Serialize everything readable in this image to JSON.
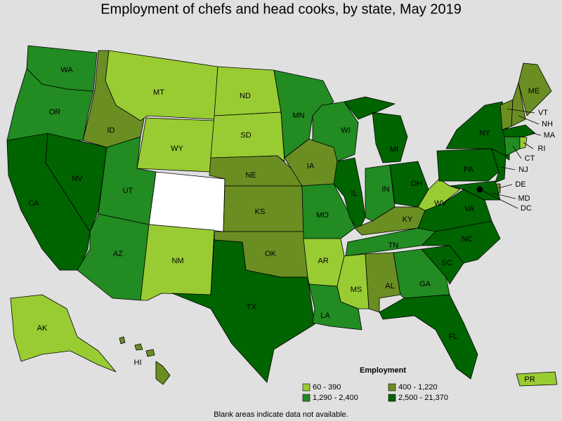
{
  "title": "Employment of chefs and head cooks, by state, May 2019",
  "states": [
    {
      "label": "WA",
      "color": "#228b22"
    },
    {
      "label": "OR",
      "color": "#228b22"
    },
    {
      "label": "CA",
      "color": "#006400"
    },
    {
      "label": "NV",
      "color": "#006400"
    },
    {
      "label": "ID",
      "color": "#6b8e23"
    },
    {
      "label": "MT",
      "color": "#99cc33"
    },
    {
      "label": "WY",
      "color": "#99cc33"
    },
    {
      "label": "UT",
      "color": "#228b22"
    },
    {
      "label": "AZ",
      "color": "#228b22"
    },
    {
      "label": "NM",
      "color": "#99cc33"
    },
    {
      "label": "ND",
      "color": "#99cc33"
    },
    {
      "label": "SD",
      "color": "#99cc33"
    },
    {
      "label": "NE",
      "color": "#6b8e23"
    },
    {
      "label": "KS",
      "color": "#6b8e23"
    },
    {
      "label": "OK",
      "color": "#6b8e23"
    },
    {
      "label": "TX",
      "color": "#006400"
    },
    {
      "label": "MN",
      "color": "#228b22"
    },
    {
      "label": "IA",
      "color": "#6b8e23"
    },
    {
      "label": "MO",
      "color": "#228b22"
    },
    {
      "label": "AR",
      "color": "#99cc33"
    },
    {
      "label": "LA",
      "color": "#228b22"
    },
    {
      "label": "WI",
      "color": "#228b22"
    },
    {
      "label": "IL",
      "color": "#006400"
    },
    {
      "label": "MI",
      "color": "#006400"
    },
    {
      "label": "IN",
      "color": "#228b22"
    },
    {
      "label": "OH",
      "color": "#006400"
    },
    {
      "label": "KY",
      "color": "#6b8e23"
    },
    {
      "label": "TN",
      "color": "#228b22"
    },
    {
      "label": "MS",
      "color": "#99cc33"
    },
    {
      "label": "AL",
      "color": "#6b8e23"
    },
    {
      "label": "GA",
      "color": "#228b22"
    },
    {
      "label": "FL",
      "color": "#006400"
    },
    {
      "label": "SC",
      "color": "#006400"
    },
    {
      "label": "NC",
      "color": "#006400"
    },
    {
      "label": "VA",
      "color": "#006400"
    },
    {
      "label": "WV",
      "color": "#99cc33"
    },
    {
      "label": "PA",
      "color": "#006400"
    },
    {
      "label": "NY",
      "color": "#006400"
    },
    {
      "label": "NJ",
      "color": "#006400"
    },
    {
      "label": "DE",
      "color": "#6b8e23"
    },
    {
      "label": "MD",
      "color": "#006400"
    },
    {
      "label": "VT",
      "color": "#6b8e23"
    },
    {
      "label": "NH",
      "color": "#6b8e23"
    },
    {
      "label": "ME",
      "color": "#6b8e23"
    },
    {
      "label": "MA",
      "color": "#006400"
    },
    {
      "label": "CT",
      "color": "#228b22"
    },
    {
      "label": "RI",
      "color": "#99cc33"
    },
    {
      "label": "DC",
      "color": "#000000"
    },
    {
      "label": "AK",
      "color": "#99cc33"
    },
    {
      "label": "HI",
      "color": "#6b8e23"
    },
    {
      "label": "PR",
      "color": "#99cc33"
    }
  ],
  "unlabeled_blank_color": "#ffffff",
  "legend": {
    "title": "Employment",
    "items": [
      {
        "label": "60 - 390",
        "color": "#99cc33"
      },
      {
        "label": "400 - 1,220",
        "color": "#6b8e23"
      },
      {
        "label": "1,290 - 2,400",
        "color": "#228b22"
      },
      {
        "label": "2,500 - 21,370",
        "color": "#006400"
      }
    ]
  },
  "note": "Blank areas indicate data not available."
}
